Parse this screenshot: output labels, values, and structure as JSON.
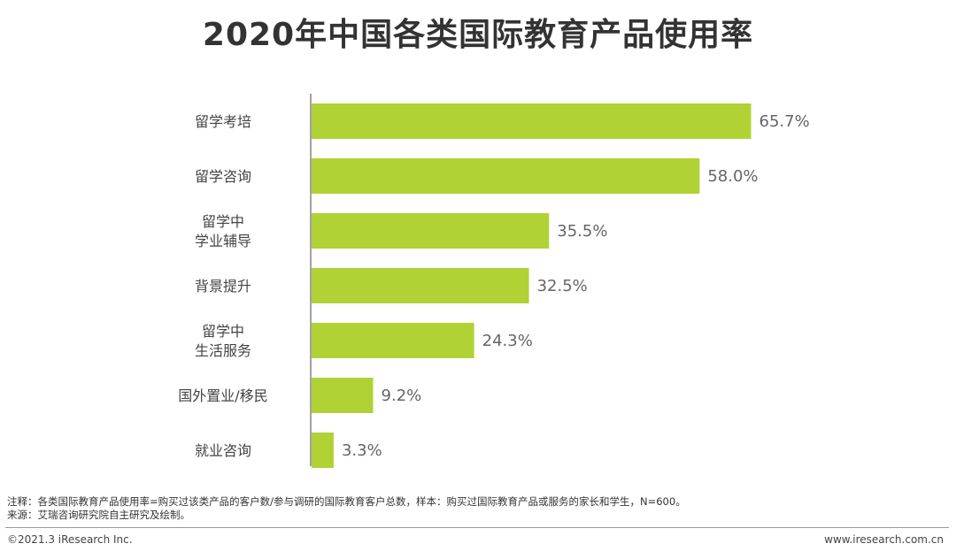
{
  "chart_data": {
    "type": "bar",
    "orientation": "horizontal",
    "title": "2020年中国各类国际教育产品使用率",
    "categories": [
      [
        "留学考培"
      ],
      [
        "留学咨询"
      ],
      [
        "留学中",
        "学业辅导"
      ],
      [
        "背景提升"
      ],
      [
        "留学中",
        "生活服务"
      ],
      [
        "国外置业/移民"
      ],
      [
        "就业咨询"
      ]
    ],
    "values": [
      65.7,
      58.0,
      35.5,
      32.5,
      24.3,
      9.2,
      3.3
    ],
    "value_labels": [
      "65.7%",
      "58.0%",
      "35.5%",
      "32.5%",
      "24.3%",
      "9.2%",
      "3.3%"
    ],
    "unit": "%",
    "xlim": [
      0,
      70
    ],
    "bar_color": "#b0d235",
    "axis_color": "#444444",
    "grid": false,
    "legend": "none"
  },
  "footer": {
    "note": "注释：各类国际教育产品使用率=购买过该类产品的客户数/参与调研的国际教育客户总数，样本：购买过国际教育产品或服务的家长和学生，N=600。",
    "source": "来源：艾瑞咨询研究院自主研究及绘制。",
    "copyright": "©2021.3 iResearch Inc.",
    "website": "www.iresearch.com.cn"
  }
}
